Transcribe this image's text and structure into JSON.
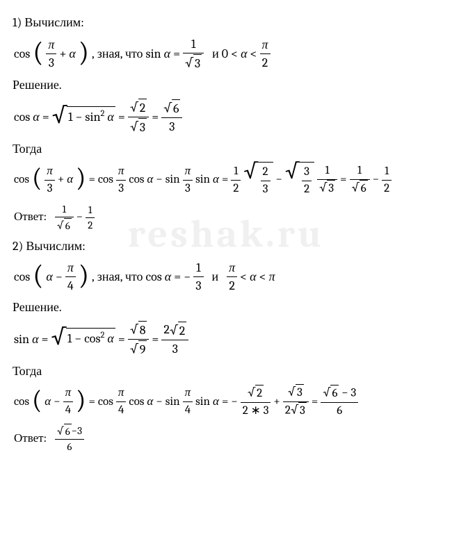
{
  "watermark": {
    "text": "reshak.ru",
    "color": "#f0f0f0"
  },
  "text": {
    "compute": "Вычислим:",
    "knowing": "зная, что",
    "and": "и",
    "solution": "Решение.",
    "then": "Тогда",
    "answer": "Ответ:"
  },
  "sym": {
    "cos": "cos",
    "sin": "sin",
    "alpha": "α",
    "pi": "π",
    "lt": "<",
    "eq": "=",
    "plus": "+",
    "minus": "−",
    "times": "∗"
  },
  "p1": {
    "num": "1)",
    "target_frac_num": "π",
    "target_frac_den": "3",
    "sin_val_num": "1",
    "sin_val_den_rad": "3",
    "range_low": "0",
    "range_high_num": "π",
    "range_high_den": "2",
    "cos_expr_rad": "1 − sin",
    "cos_expr_sup": "2",
    "step_num_rad": "2",
    "step_den_rad": "3",
    "step2_num_rad": "6",
    "step2_den": "3",
    "expand_cos_num": "π",
    "expand_cos_den": "3",
    "t1_a_num": "1",
    "t1_a_den": "2",
    "t1_b_num": "2",
    "t1_b_den": "3",
    "t2_a_num": "3",
    "t2_a_den": "2",
    "t2_b_num": "1",
    "t2_b_den_rad": "3",
    "res_a_num": "1",
    "res_a_den_rad": "6",
    "res_b_num": "1",
    "res_b_den": "2",
    "ans_a_num": "1",
    "ans_a_den_rad": "6",
    "ans_b_num": "1",
    "ans_b_den": "2"
  },
  "p2": {
    "num": "2)",
    "target_frac_num": "π",
    "target_frac_den": "4",
    "cos_val": "1",
    "cos_val_den": "3",
    "range_low_num": "π",
    "range_low_den": "2",
    "sin_expr_rad": "1 − cos",
    "sin_expr_sup": "2",
    "step_num_rad": "8",
    "step_den_rad": "9",
    "step2_coef": "2",
    "step2_num_rad": "2",
    "step2_den": "3",
    "expand_cos_num": "π",
    "expand_cos_den": "4",
    "t1_num_rad": "2",
    "t1_den_a": "2",
    "t1_den_b": "3",
    "t2_num_rad": "3",
    "t2_den_a": "2",
    "t2_den_b_rad": "3",
    "res_num_rad": "6",
    "res_num_b": "3",
    "res_den": "6",
    "ans_num_rad": "6",
    "ans_num_b": "3",
    "ans_den": "6"
  },
  "style": {
    "text_color": "#000000",
    "background": "#ffffff",
    "font_family": "Cambria, Times New Roman, serif",
    "font_size_pt": 14
  }
}
